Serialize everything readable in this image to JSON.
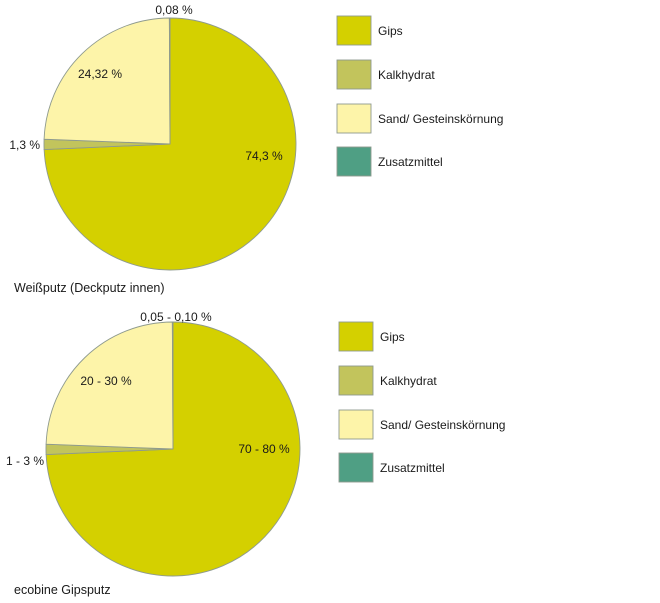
{
  "chart_data": [
    {
      "type": "pie",
      "title": "Weißputz (Deckputz innen)",
      "legend_position": "right",
      "slices": [
        {
          "label": "Gips",
          "value": 74.3,
          "value_label": "74,3 %",
          "color": "#d4d000"
        },
        {
          "label": "Kalkhydrat",
          "value": 1.3,
          "value_label": "1,3 %",
          "color": "#c2c45c"
        },
        {
          "label": "Sand/ Gesteinskörnung",
          "value": 24.32,
          "value_label": "24,32 %",
          "color": "#fdf4a9"
        },
        {
          "label": "Zusatzmittel",
          "value": 0.08,
          "value_label": "0,08 %",
          "color": "#4f9f84"
        }
      ]
    },
    {
      "type": "pie",
      "title": "ecobine Gipsputz",
      "legend_position": "right",
      "slices": [
        {
          "label": "Gips",
          "value": 74.3,
          "value_label": "70 - 80 %",
          "color": "#d4d000"
        },
        {
          "label": "Kalkhydrat",
          "value": 1.3,
          "value_label": "1 - 3 %",
          "color": "#c2c45c"
        },
        {
          "label": "Sand/ Gesteinskörnung",
          "value": 24.32,
          "value_label": "20 - 30 %",
          "color": "#fdf4a9"
        },
        {
          "label": "Zusatzmittel",
          "value": 0.08,
          "value_label": "0,05 - 0,10 %",
          "color": "#4f9f84"
        }
      ]
    }
  ]
}
